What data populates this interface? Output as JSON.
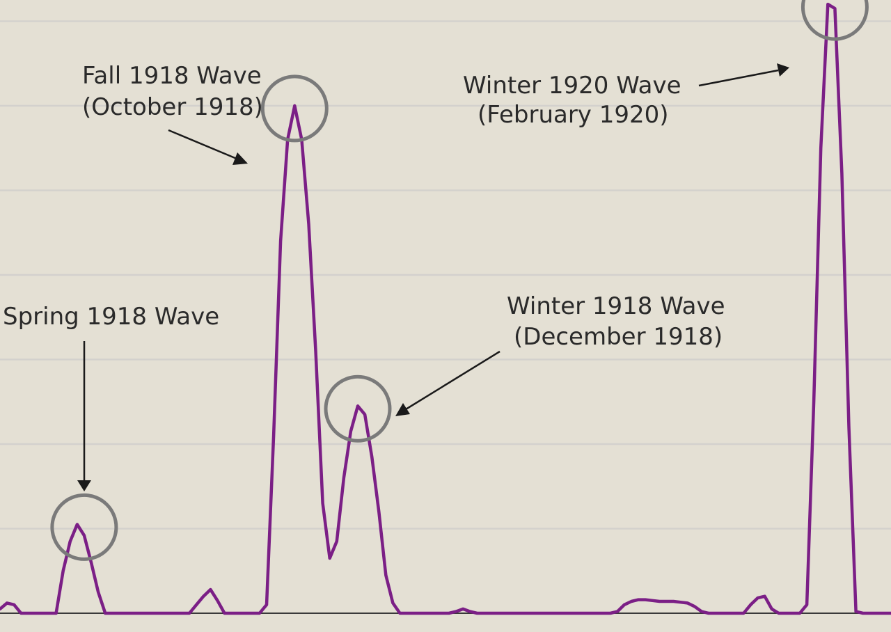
{
  "chart_data": {
    "type": "line",
    "title": "",
    "xlabel": "",
    "ylabel": "",
    "grid": true,
    "ylim": [
      0,
      7.25
    ],
    "x": [
      0,
      1,
      2,
      3,
      4,
      5,
      6,
      7,
      8,
      9,
      10,
      11,
      12,
      13,
      14,
      15,
      16,
      17,
      18,
      19,
      20,
      21,
      22,
      23,
      24,
      25,
      26,
      27,
      28,
      29,
      30,
      31,
      32,
      33,
      34,
      35,
      36,
      37,
      38,
      39,
      40,
      41,
      42,
      43,
      44,
      45,
      46,
      47,
      48,
      49,
      50,
      51,
      52,
      53,
      54,
      55,
      56,
      57,
      58,
      59,
      60,
      61,
      62,
      63,
      64,
      65,
      66,
      67,
      68,
      69,
      70,
      71,
      72,
      73,
      74,
      75,
      76,
      77,
      78,
      79,
      80,
      81,
      82,
      83,
      84,
      85,
      86,
      87,
      88,
      89,
      90,
      91,
      92,
      93,
      94,
      95,
      96,
      97,
      98,
      99,
      100,
      101,
      102,
      103,
      104,
      105,
      106,
      107,
      108,
      109,
      110,
      111,
      112,
      113,
      114,
      115,
      116,
      117,
      118,
      119,
      120,
      121,
      122,
      123,
      124,
      125,
      126,
      127
    ],
    "series": [
      {
        "color": "#7b1f86",
        "values": [
          0.05,
          0.12,
          0.1,
          0,
          0,
          0,
          0,
          0,
          0,
          0.5,
          0.85,
          1.05,
          0.92,
          0.6,
          0.25,
          0,
          0,
          0,
          0,
          0,
          0,
          0,
          0,
          0,
          0,
          0,
          0,
          0,
          0.1,
          0.2,
          0.28,
          0.15,
          0,
          0,
          0,
          0,
          0,
          0,
          0.1,
          2.1,
          4.4,
          5.6,
          6.0,
          5.6,
          4.6,
          3.1,
          1.3,
          0.65,
          0.85,
          1.6,
          2.15,
          2.45,
          2.35,
          1.85,
          1.2,
          0.45,
          0.12,
          0,
          0,
          0,
          0,
          0,
          0,
          0,
          0,
          0.02,
          0.05,
          0.02,
          0,
          0,
          0,
          0,
          0,
          0,
          0,
          0,
          0,
          0,
          0,
          0,
          0,
          0,
          0,
          0,
          0,
          0,
          0,
          0,
          0.02,
          0.1,
          0.14,
          0.16,
          0.16,
          0.15,
          0.14,
          0.14,
          0.14,
          0.13,
          0.12,
          0.08,
          0.02,
          0,
          0,
          0,
          0,
          0,
          0,
          0.1,
          0.18,
          0.2,
          0.05,
          0,
          0,
          0,
          0,
          0.1,
          2.5,
          5.5,
          7.2,
          7.15,
          5.2,
          2.2,
          0.02,
          0,
          0,
          0,
          0,
          0
        ]
      }
    ],
    "annotations": [
      {
        "text_lines": [
          "Spring 1918 Wave"
        ],
        "peak_x": 12,
        "peak_y": 1.05
      },
      {
        "text_lines": [
          "Fall 1918 Wave",
          "(October 1918)"
        ],
        "peak_x": 42,
        "peak_y": 6.0
      },
      {
        "text_lines": [
          "Winter 1918 Wave",
          "(December 1918)"
        ],
        "peak_x": 51,
        "peak_y": 2.45
      },
      {
        "text_lines": [
          "Winter 1920 Wave",
          "(February 1920)"
        ],
        "peak_x": 119,
        "peak_y": 7.2
      }
    ],
    "colors": {
      "background": "#e4e0d4",
      "series": "#7b1f86",
      "circle": "#7a7a7a",
      "grid": "#d3d1cd"
    }
  }
}
